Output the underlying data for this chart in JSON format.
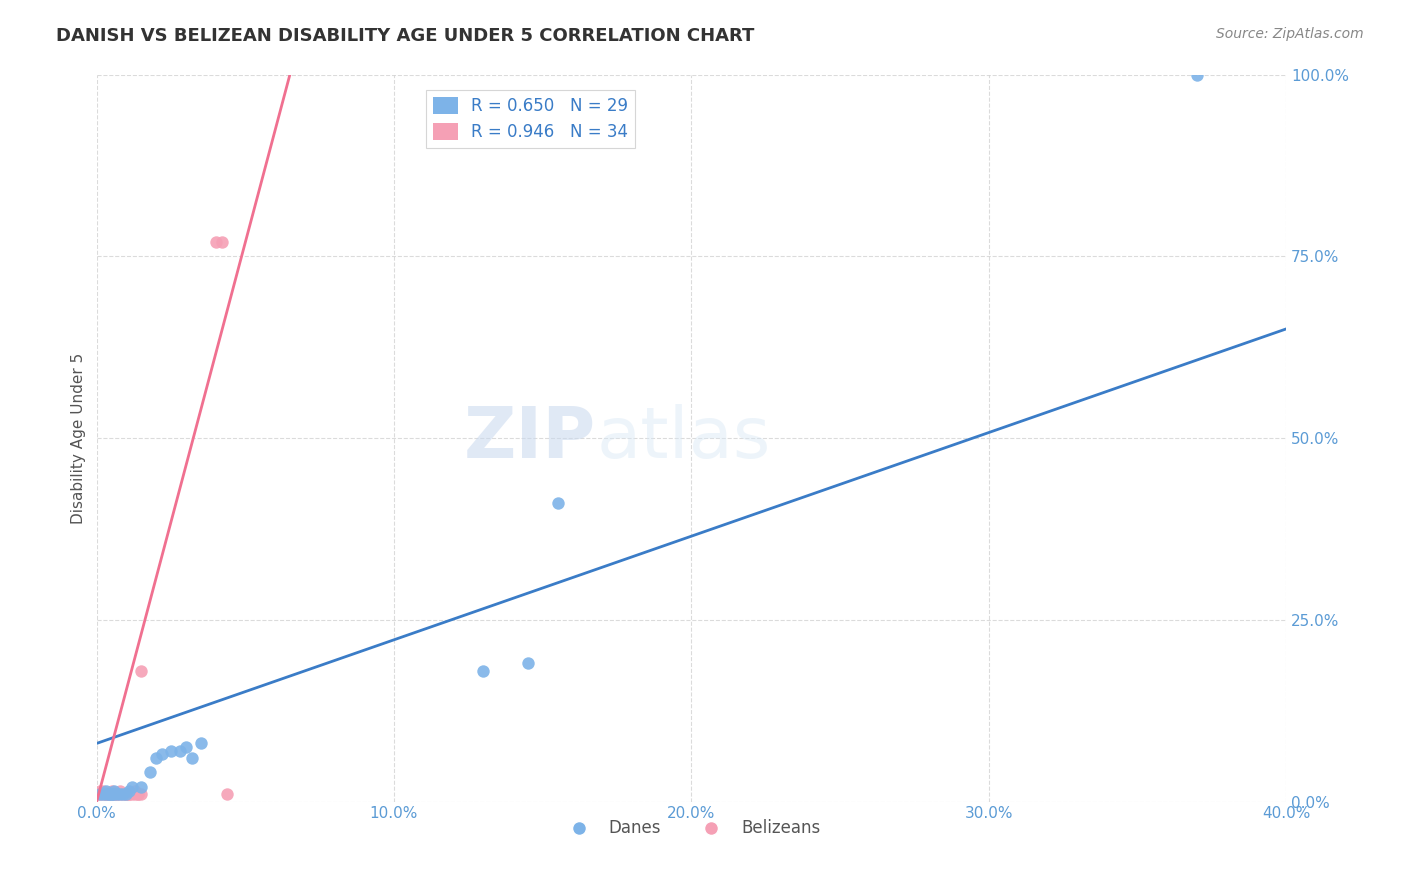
{
  "title": "DANISH VS BELIZEAN DISABILITY AGE UNDER 5 CORRELATION CHART",
  "source": "Source: ZipAtlas.com",
  "ylabel": "Disability Age Under 5",
  "xlim": [
    0.0,
    0.4
  ],
  "ylim": [
    0.0,
    1.0
  ],
  "xticks": [
    0.0,
    0.1,
    0.2,
    0.3,
    0.4
  ],
  "xtick_labels": [
    "0.0%",
    "10.0%",
    "20.0%",
    "30.0%",
    "40.0%"
  ],
  "yticks": [
    0.0,
    0.25,
    0.5,
    0.75,
    1.0
  ],
  "ytick_labels": [
    "0.0%",
    "25.0%",
    "50.0%",
    "75.0%",
    "100.0%"
  ],
  "legend_R_danes": "R = 0.650",
  "legend_N_danes": "N = 29",
  "legend_R_belizeans": "R = 0.946",
  "legend_N_belizeans": "N = 34",
  "danes_color": "#7db3e8",
  "belizeans_color": "#f5a0b5",
  "danes_line_color": "#3a7cc7",
  "belizeans_line_color": "#f07090",
  "background_color": "#ffffff",
  "grid_color": "#cccccc",
  "watermark_zip": "ZIP",
  "watermark_atlas": "atlas",
  "title_color": "#333333",
  "axis_label_color": "#555555",
  "tick_label_color_right": "#5b9bd5",
  "tick_label_color_bottom": "#5b9bd5",
  "danes_points_x": [
    0.001,
    0.002,
    0.003,
    0.003,
    0.004,
    0.004,
    0.005,
    0.005,
    0.006,
    0.006,
    0.007,
    0.008,
    0.009,
    0.01,
    0.011,
    0.012,
    0.015,
    0.018,
    0.02,
    0.022,
    0.025,
    0.028,
    0.03,
    0.032,
    0.035,
    0.13,
    0.145,
    0.155,
    0.37
  ],
  "danes_points_y": [
    0.01,
    0.01,
    0.01,
    0.015,
    0.01,
    0.01,
    0.01,
    0.01,
    0.015,
    0.01,
    0.01,
    0.01,
    0.01,
    0.01,
    0.015,
    0.02,
    0.02,
    0.04,
    0.06,
    0.065,
    0.07,
    0.07,
    0.075,
    0.06,
    0.08,
    0.18,
    0.19,
    0.41,
    1.0
  ],
  "danes_trend_x": [
    0.0,
    0.4
  ],
  "danes_trend_y": [
    0.08,
    0.65
  ],
  "belizeans_points_x": [
    0.0005,
    0.001,
    0.001,
    0.002,
    0.002,
    0.003,
    0.003,
    0.003,
    0.004,
    0.004,
    0.005,
    0.005,
    0.005,
    0.006,
    0.006,
    0.007,
    0.007,
    0.008,
    0.008,
    0.009,
    0.01,
    0.01,
    0.011,
    0.011,
    0.012,
    0.013,
    0.013,
    0.014,
    0.014,
    0.015,
    0.015,
    0.04,
    0.042,
    0.044
  ],
  "belizeans_points_y": [
    0.01,
    0.01,
    0.015,
    0.01,
    0.015,
    0.01,
    0.01,
    0.01,
    0.01,
    0.01,
    0.01,
    0.01,
    0.015,
    0.01,
    0.01,
    0.01,
    0.01,
    0.01,
    0.015,
    0.01,
    0.01,
    0.01,
    0.01,
    0.01,
    0.01,
    0.01,
    0.015,
    0.01,
    0.01,
    0.18,
    0.01,
    0.77,
    0.77,
    0.01
  ],
  "belizeans_trend_x": [
    0.0,
    0.065
  ],
  "belizeans_trend_y": [
    0.0,
    1.0
  ]
}
